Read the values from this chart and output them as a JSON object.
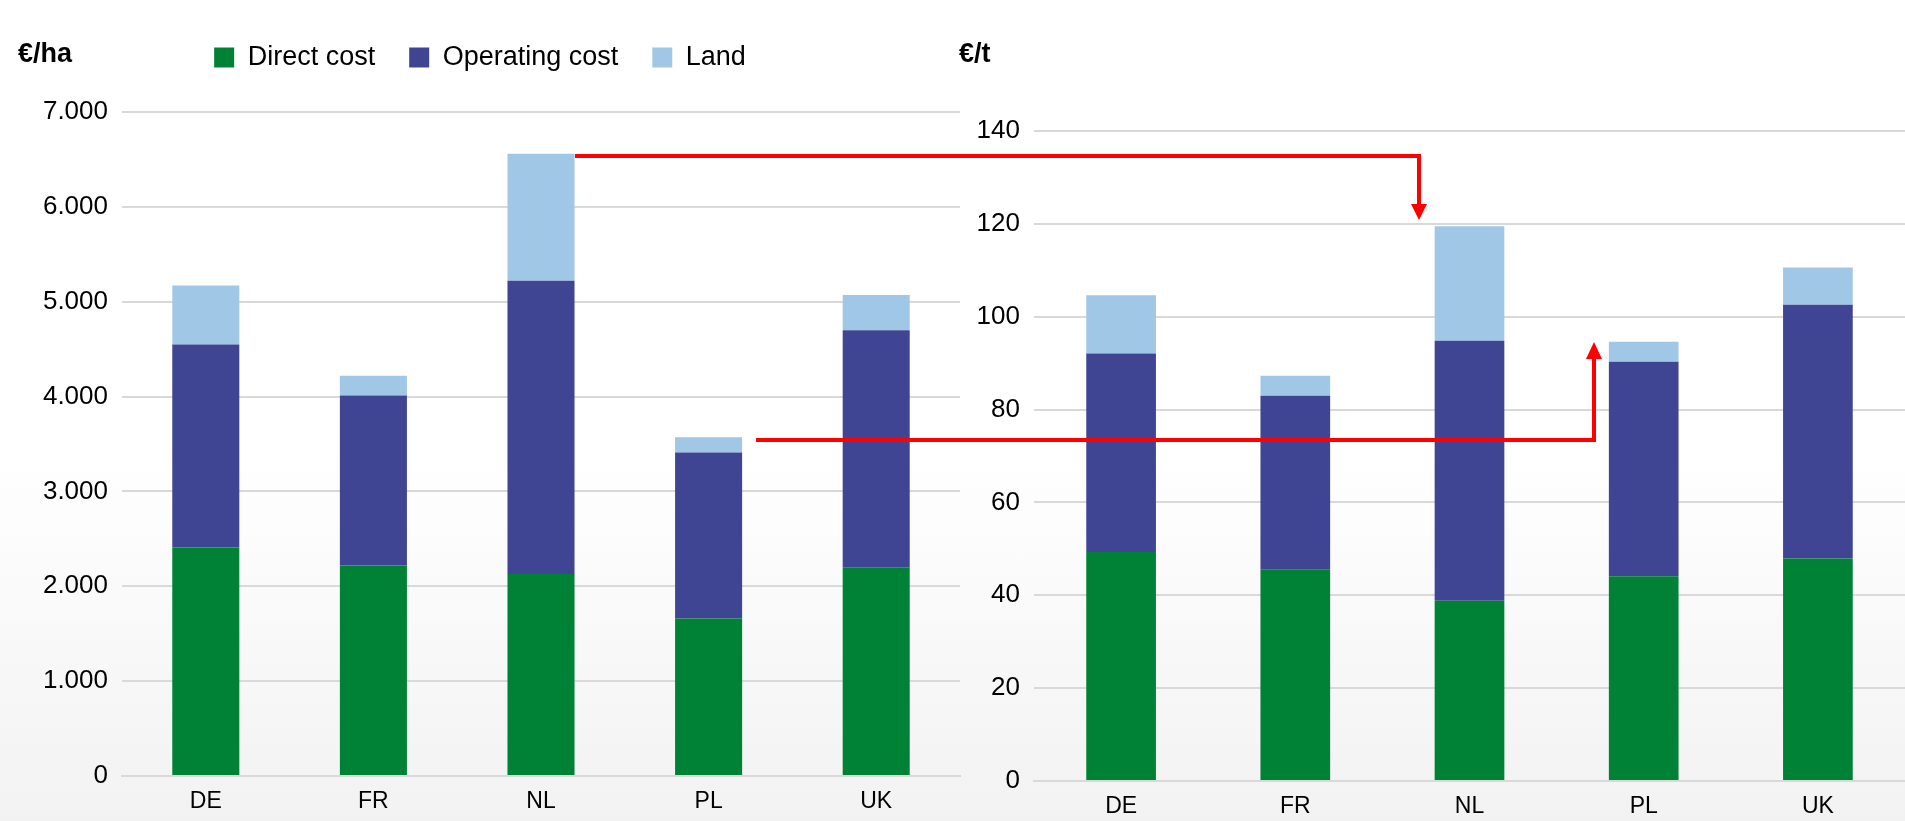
{
  "chart_data": [
    {
      "type": "bar",
      "ylabel": "€/ha",
      "categories": [
        "DE",
        "FR",
        "NL",
        "PL",
        "UK"
      ],
      "stacked": true,
      "grid": "y",
      "legend": "top",
      "series": [
        {
          "name": "Direct cost",
          "color": "#008236",
          "values": [
            2410,
            2220,
            2130,
            1660,
            2200
          ]
        },
        {
          "name": "Operating cost",
          "color": "#3f4592",
          "values": [
            2140,
            1790,
            3090,
            1750,
            2500
          ]
        },
        {
          "name": "Land",
          "color": "#a1c7e7",
          "values": [
            620,
            210,
            1340,
            160,
            370
          ]
        }
      ],
      "ylim": [
        0,
        7000
      ],
      "yticks": [
        {
          "value": 0,
          "label": "0"
        },
        {
          "value": 1000,
          "label": "1.000"
        },
        {
          "value": 2000,
          "label": "2.000"
        },
        {
          "value": 3000,
          "label": "3.000"
        },
        {
          "value": 4000,
          "label": "4.000"
        },
        {
          "value": 5000,
          "label": "5.000"
        },
        {
          "value": 6000,
          "label": "6.000"
        },
        {
          "value": 7000,
          "label": "7.000"
        }
      ]
    },
    {
      "type": "bar",
      "ylabel": "€/t",
      "categories": [
        "DE",
        "FR",
        "NL",
        "PL",
        "UK"
      ],
      "stacked": true,
      "grid": "y",
      "series": [
        {
          "color": "#008236",
          "values": [
            49.3,
            45.5,
            38.8,
            44.1,
            47.9
          ]
        },
        {
          "color": "#3f4592",
          "values": [
            42.8,
            37.5,
            56.0,
            46.2,
            54.7
          ]
        },
        {
          "color": "#a1c7e7",
          "values": [
            12.5,
            4.3,
            24.7,
            4.3,
            8.0
          ]
        }
      ],
      "ylim": [
        0,
        140
      ],
      "yticks": [
        0,
        20,
        40,
        60,
        80,
        100,
        120,
        140
      ]
    }
  ]
}
